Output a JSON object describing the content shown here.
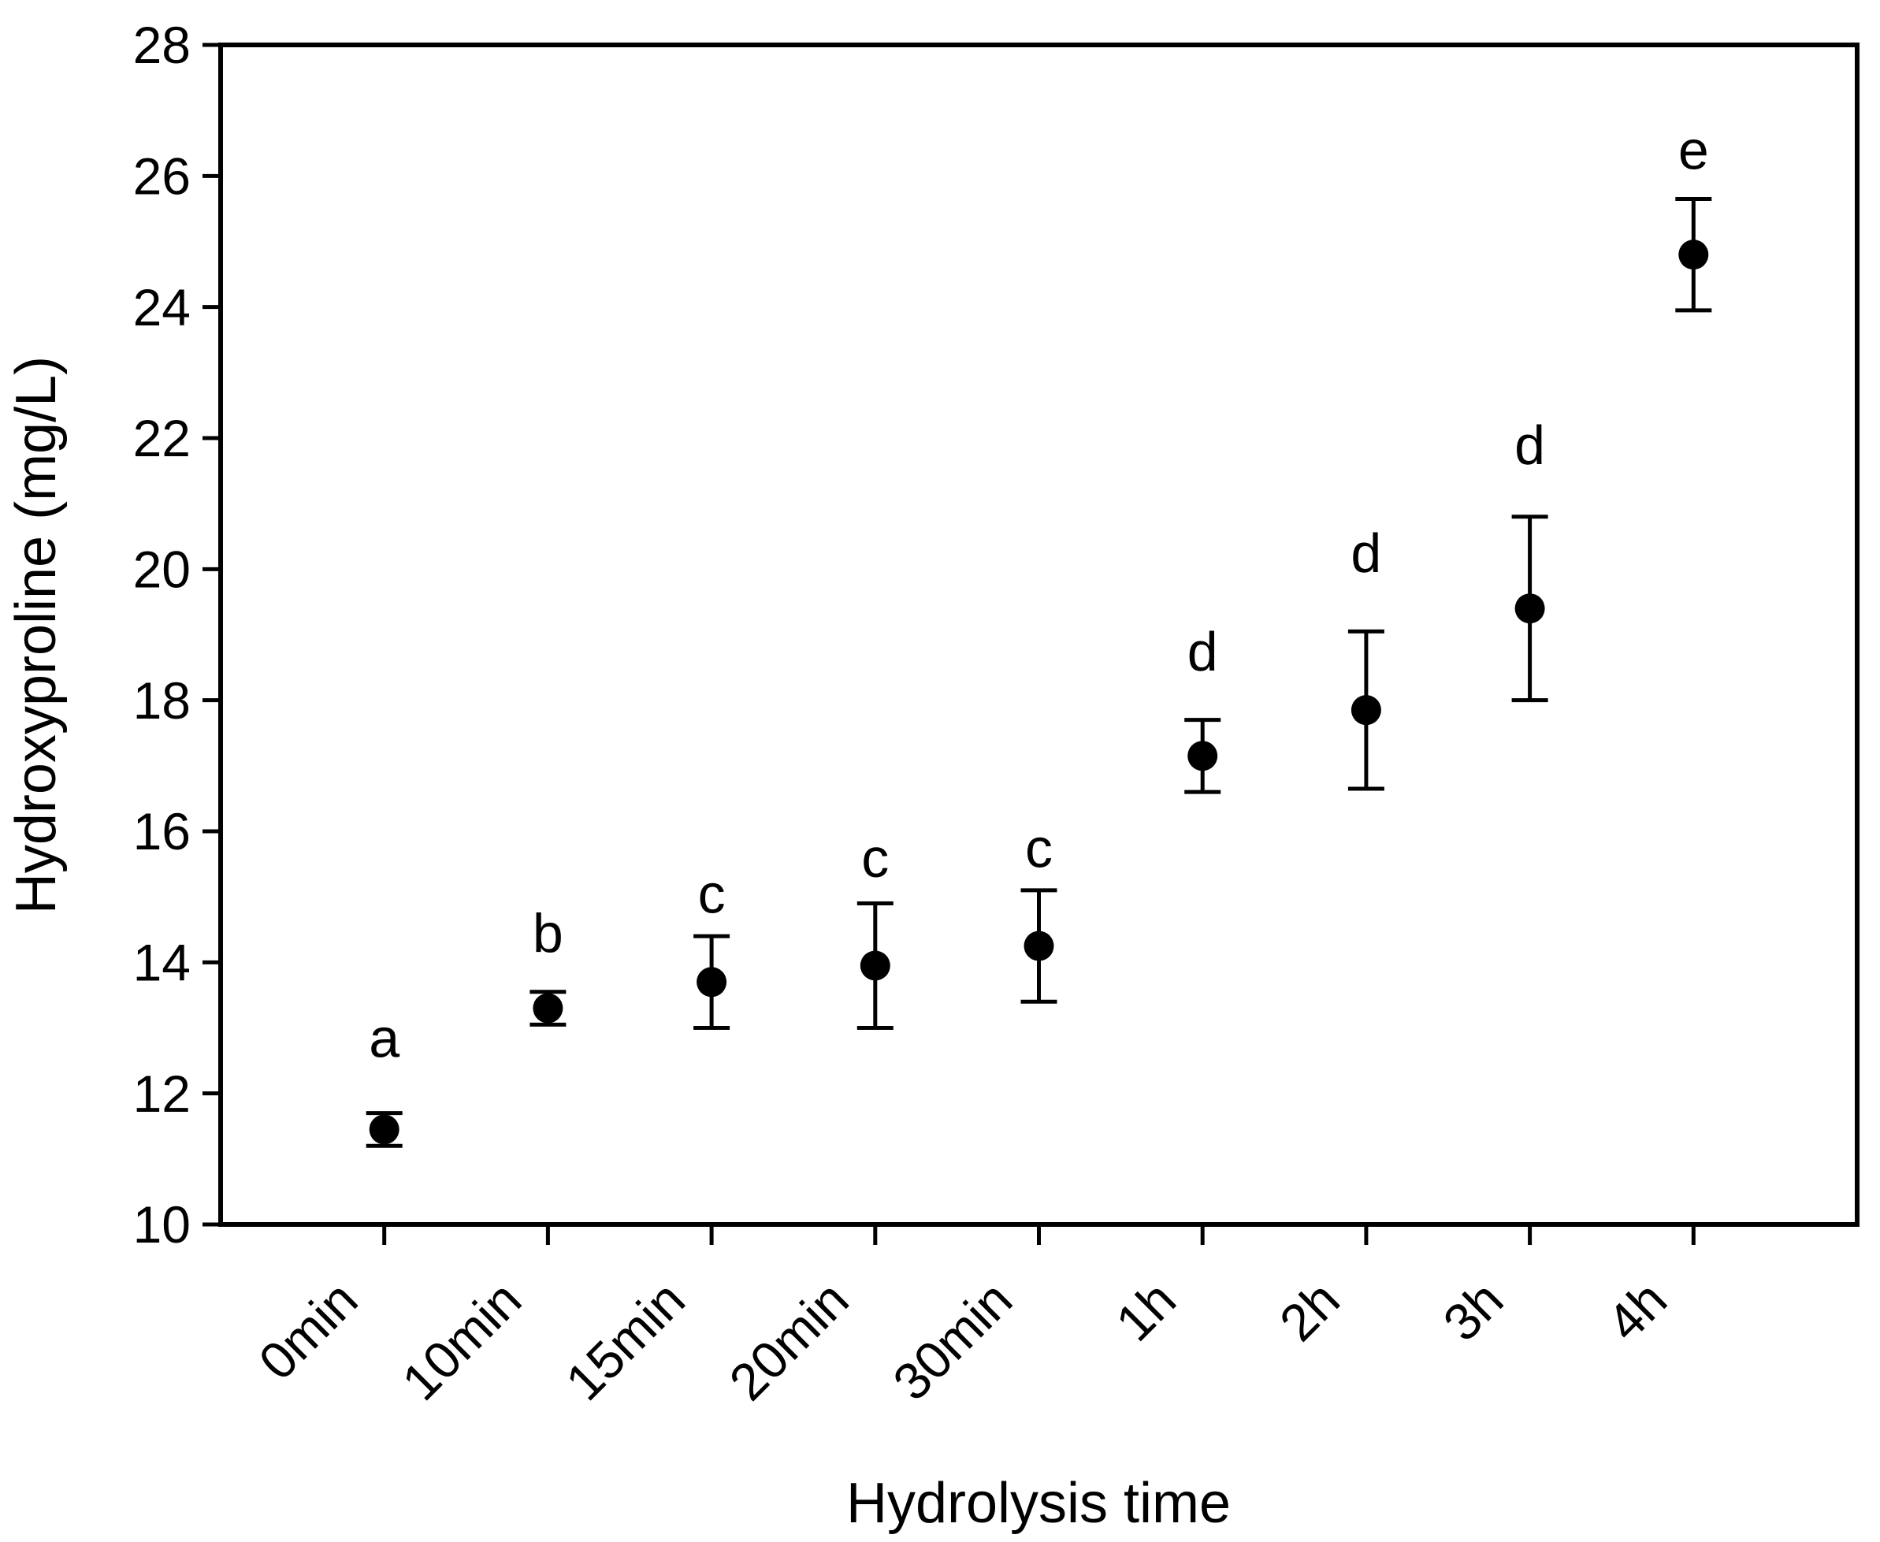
{
  "figure": {
    "background": "#ffffff",
    "ink_color": "#000000"
  },
  "chart_data": {
    "type": "scatter",
    "title": "",
    "xlabel": "Hydrolysis time",
    "ylabel": "Hydroxyproline (mg/L)",
    "categories": [
      "0min",
      "10min",
      "15min",
      "20min",
      "30min",
      "1h",
      "2h",
      "3h",
      "4h"
    ],
    "values": [
      11.45,
      13.3,
      13.7,
      13.95,
      14.25,
      17.15,
      17.85,
      19.4,
      24.8
    ],
    "errors": [
      0.25,
      0.25,
      0.7,
      0.95,
      0.85,
      0.55,
      1.2,
      1.4,
      0.85
    ],
    "sig_letters": [
      "a",
      "b",
      "c",
      "c",
      "c",
      "d",
      "d",
      "d",
      "e"
    ],
    "sig_letter_y": [
      12.85,
      14.45,
      15.05,
      15.6,
      15.75,
      18.75,
      20.25,
      21.9,
      26.4
    ],
    "ylim": [
      10,
      28
    ],
    "yticks": [
      10,
      12,
      14,
      16,
      18,
      20,
      22,
      24,
      26,
      28
    ],
    "ytick_step": 2,
    "grid": false,
    "legend": "none",
    "marker": "filled-circle",
    "error_bar_caps": true,
    "x_tick_label_rotation_deg": -45,
    "frame": "full-box"
  }
}
